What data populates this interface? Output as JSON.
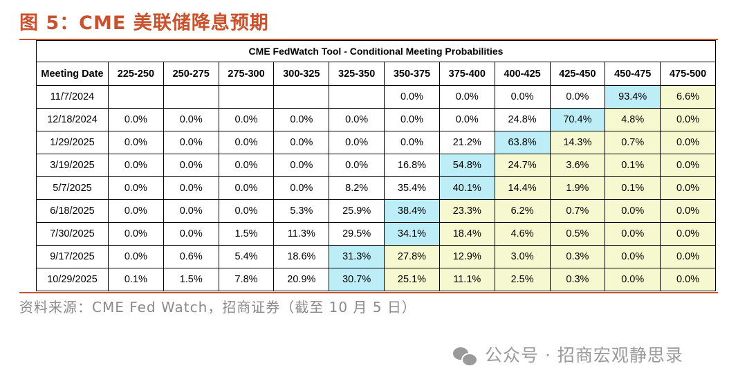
{
  "figure": {
    "title": "图 5：CME 美联储降息预期",
    "source": "资料来源：CME Fed Watch，招商证券（截至 10 月 5 日）",
    "watermark": "公众号 · 招商宏观静思录"
  },
  "table": {
    "caption": "CME FedWatch Tool - Conditional Meeting Probabilities",
    "columns": [
      "Meeting Date",
      "225-250",
      "250-275",
      "275-300",
      "300-325",
      "325-350",
      "350-375",
      "375-400",
      "400-425",
      "425-450",
      "450-475",
      "475-500"
    ],
    "rows": [
      {
        "date": "11/7/2024",
        "values": [
          "",
          "",
          "",
          "",
          "",
          "0.0%",
          "0.0%",
          "0.0%",
          "0.0%",
          "93.4%",
          "6.6%"
        ],
        "highlight": 9
      },
      {
        "date": "12/18/2024",
        "values": [
          "0.0%",
          "0.0%",
          "0.0%",
          "0.0%",
          "0.0%",
          "0.0%",
          "0.0%",
          "24.8%",
          "70.4%",
          "4.8%",
          "0.0%"
        ],
        "highlight": 8
      },
      {
        "date": "1/29/2025",
        "values": [
          "0.0%",
          "0.0%",
          "0.0%",
          "0.0%",
          "0.0%",
          "0.0%",
          "21.2%",
          "63.8%",
          "14.3%",
          "0.7%",
          "0.0%"
        ],
        "highlight": 7
      },
      {
        "date": "3/19/2025",
        "values": [
          "0.0%",
          "0.0%",
          "0.0%",
          "0.0%",
          "0.0%",
          "16.8%",
          "54.8%",
          "24.7%",
          "3.6%",
          "0.1%",
          "0.0%"
        ],
        "highlight": 6
      },
      {
        "date": "5/7/2025",
        "values": [
          "0.0%",
          "0.0%",
          "0.0%",
          "0.0%",
          "8.2%",
          "35.4%",
          "40.1%",
          "14.4%",
          "1.9%",
          "0.1%",
          "0.0%"
        ],
        "highlight": 6
      },
      {
        "date": "6/18/2025",
        "values": [
          "0.0%",
          "0.0%",
          "0.0%",
          "5.3%",
          "25.9%",
          "38.4%",
          "23.3%",
          "6.2%",
          "0.7%",
          "0.0%",
          "0.0%"
        ],
        "highlight": 5
      },
      {
        "date": "7/30/2025",
        "values": [
          "0.0%",
          "0.0%",
          "1.5%",
          "11.3%",
          "29.5%",
          "34.1%",
          "18.4%",
          "4.6%",
          "0.5%",
          "0.0%",
          "0.0%"
        ],
        "highlight": 5
      },
      {
        "date": "9/17/2025",
        "values": [
          "0.0%",
          "0.6%",
          "5.4%",
          "18.6%",
          "31.3%",
          "27.8%",
          "12.9%",
          "3.0%",
          "0.3%",
          "0.0%",
          "0.0%"
        ],
        "highlight": 4
      },
      {
        "date": "10/29/2025",
        "values": [
          "0.1%",
          "1.5%",
          "7.8%",
          "20.9%",
          "30.7%",
          "25.1%",
          "11.1%",
          "2.5%",
          "0.3%",
          "0.0%",
          "0.0%"
        ],
        "highlight": 4
      }
    ]
  },
  "colors": {
    "accent": "#c8512e",
    "highlight": "#bdeef7",
    "shade": "#f6f8cf"
  }
}
